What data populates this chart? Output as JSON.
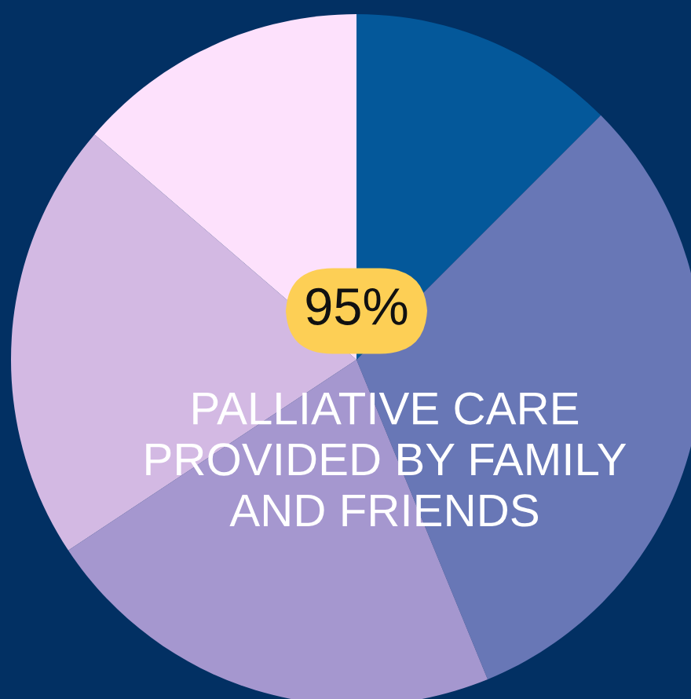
{
  "chart_data": {
    "type": "pie",
    "categories": [
      null,
      null,
      null,
      null,
      null
    ],
    "values": [
      12.5,
      31.3,
      21.9,
      20.6,
      13.7
    ],
    "colors": [
      "#04589a",
      "#6877b6",
      "#a597cf",
      "#d3b9e3",
      "#fde1fc"
    ],
    "annotations": [
      "95%",
      "PALLIATIVE CARE\nPROVIDED BY FAMILY\nAND FRIENDS"
    ]
  }
}
